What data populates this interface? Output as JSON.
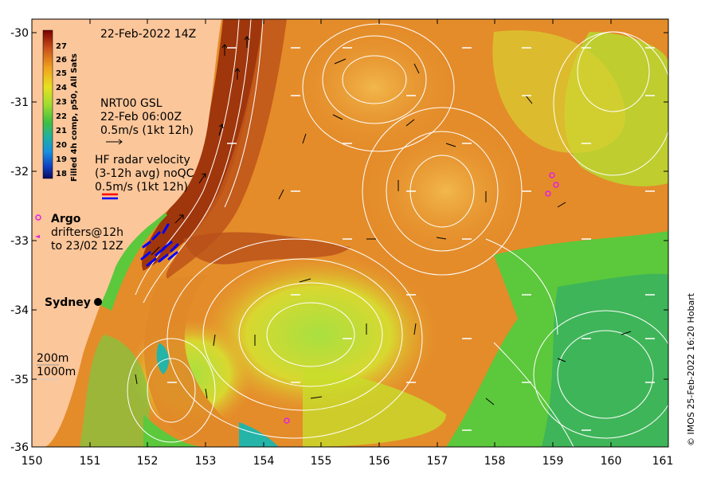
{
  "map": {
    "date_label": "22-Feb-2022 14Z",
    "colorbar": {
      "title": "Filled 4h comp, p50, All Sats",
      "ticks": [
        "27",
        "26",
        "25",
        "24",
        "23",
        "22",
        "21",
        "20",
        "19",
        "18"
      ]
    },
    "gsl_legend": [
      "NRT00 GSL",
      "22-Feb 06:00Z",
      "0.5m/s (1kt 12h)"
    ],
    "hf_legend": [
      "HF radar velocity",
      "(3-12h avg) noQC",
      "0.5m/s (1kt 12h)"
    ],
    "argo_label": "Argo",
    "drifters_legend": [
      "drifters@12h",
      "to 23/02 12Z"
    ],
    "city_label": "Sydney",
    "depth_legend": [
      "200m",
      "1000m"
    ],
    "credit": "© IMOS 25-Feb-2022 16:20 Hobart",
    "x_ticks": [
      "150",
      "151",
      "152",
      "153",
      "154",
      "155",
      "156",
      "157",
      "158",
      "159",
      "160",
      "161"
    ],
    "y_ticks": [
      "-30",
      "-31",
      "-32",
      "-33",
      "-34",
      "-35",
      "-36"
    ]
  },
  "colors": {
    "land": "#FBC69A",
    "warm_core": "#A0360C",
    "orange": "#E48C2A",
    "light_orange": "#F0B040",
    "yellow_green": "#C8DC2A",
    "green": "#5CC83C",
    "cyan": "#24B4A8",
    "contour": "#FFFFFF",
    "argo": "#E020E0",
    "hf_arrow_a": "#FF0000",
    "hf_arrow_b": "#0000FF"
  }
}
